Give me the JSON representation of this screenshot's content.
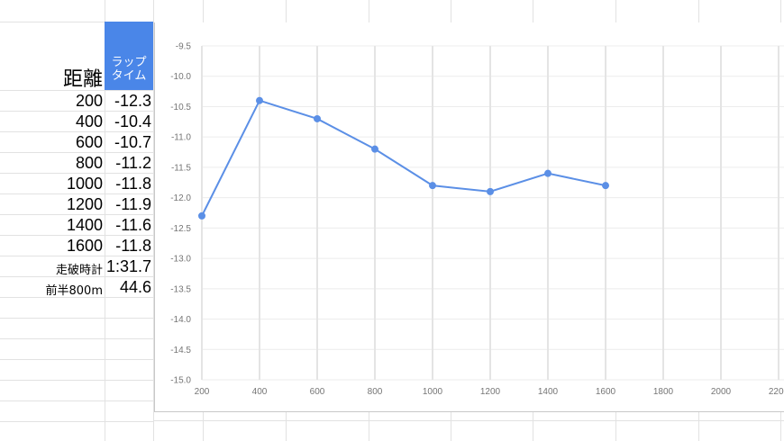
{
  "sheet": {
    "header_distance": "距離",
    "header_lap_line1": "ラップ",
    "header_lap_line2": "タイム",
    "rows": [
      {
        "d": "200",
        "v": "-12.3"
      },
      {
        "d": "400",
        "v": "-10.4"
      },
      {
        "d": "600",
        "v": "-10.7"
      },
      {
        "d": "800",
        "v": "-11.2"
      },
      {
        "d": "1000",
        "v": "-11.8"
      },
      {
        "d": "1200",
        "v": "-11.9"
      },
      {
        "d": "1400",
        "v": "-11.6"
      },
      {
        "d": "1600",
        "v": "-11.8"
      }
    ],
    "total_label": "走破時計",
    "total_value": "1:31.7",
    "first_half_label": "前半800m",
    "first_half_value": "44.6",
    "header_color": "#4a86e8"
  },
  "chart_data": {
    "type": "line",
    "x": [
      200,
      400,
      600,
      800,
      1000,
      1200,
      1400,
      1600
    ],
    "series": [
      {
        "values": [
          -12.3,
          -10.4,
          -10.7,
          -11.2,
          -11.8,
          -11.9,
          -11.6,
          -11.8
        ],
        "color": "#5b8fe6"
      }
    ],
    "xlim": [
      200,
      2200
    ],
    "xticks": [
      "200",
      "400",
      "600",
      "800",
      "1000",
      "1200",
      "1400",
      "1600",
      "1800",
      "2000",
      "2200"
    ],
    "ylim": [
      -15.0,
      -9.5
    ],
    "yticks": [
      "-9.5",
      "-10.0",
      "-10.5",
      "-11.0",
      "-11.5",
      "-12.0",
      "-12.5",
      "-13.0",
      "-13.5",
      "-14.0",
      "-14.5",
      "-15.0"
    ],
    "grid": true,
    "title": "",
    "xlabel": "",
    "ylabel": ""
  }
}
